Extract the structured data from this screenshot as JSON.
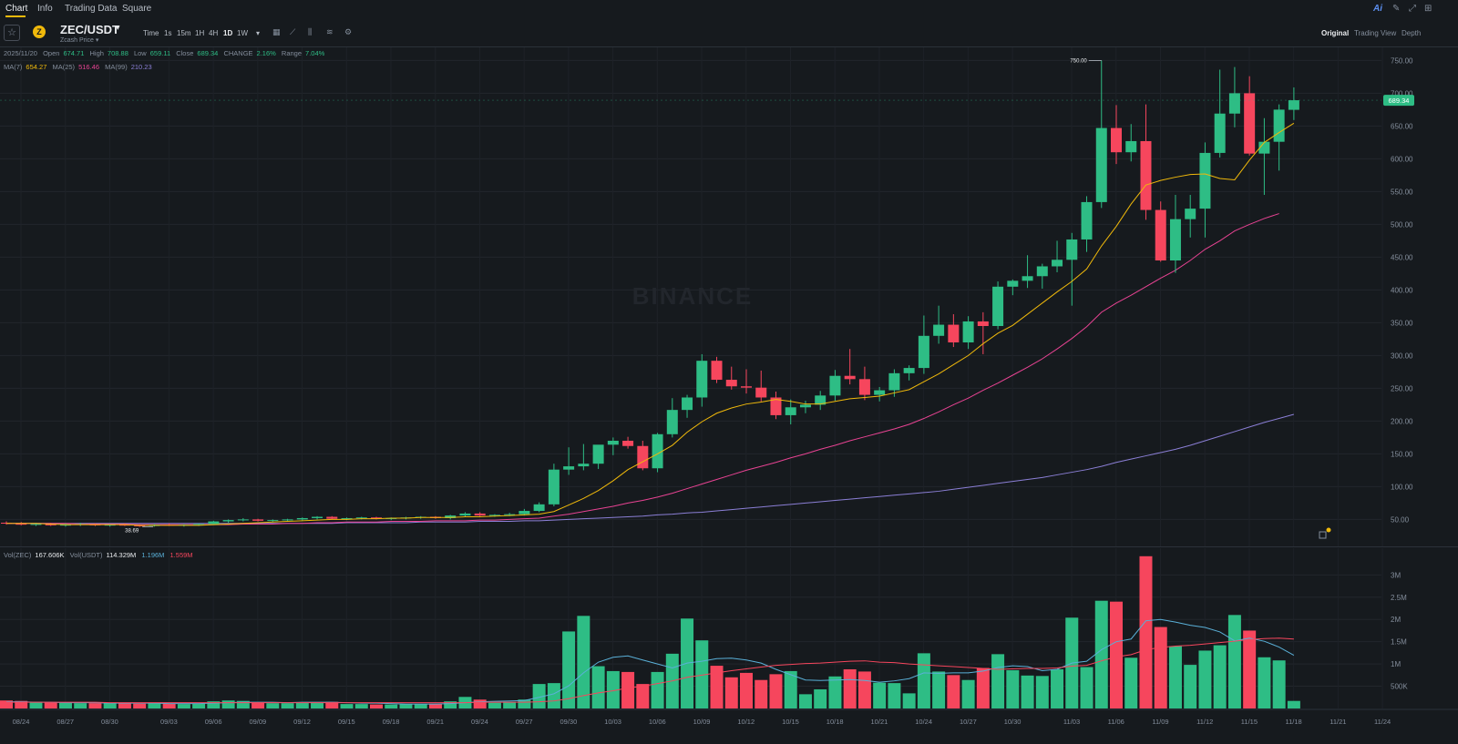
{
  "nav": {
    "tabs": [
      "Chart",
      "Info",
      "Trading Data",
      "Square"
    ],
    "right_icons": [
      "ai-icon",
      "edit-icon",
      "fullscreen-icon",
      "grid-icon"
    ],
    "ai_label": "Ai"
  },
  "toolbar": {
    "star": "☆",
    "coin_letter": "Z",
    "symbol": "ZEC/USDT",
    "caret": "▾",
    "subtitle": "Zcash Price ▾",
    "intervals": [
      "Time",
      "1s",
      "15m",
      "1H",
      "4H",
      "1D",
      "1W",
      "▾"
    ],
    "active_interval": "1D",
    "tool_icons": [
      "calendar-icon",
      "line-chart-icon",
      "candle-type-icon",
      "indicators-icon",
      "settings-icon"
    ],
    "views": [
      "Original",
      "Trading View",
      "Depth"
    ],
    "active_view": "Original"
  },
  "legend": {
    "date": "2025/11/20",
    "open_label": "Open",
    "open": "674.71",
    "high_label": "High",
    "high": "708.88",
    "low_label": "Low",
    "low": "659.11",
    "close_label": "Close",
    "close": "689.34",
    "change_label": "CHANGE",
    "change": "2.16%",
    "range_label": "Range",
    "range": "7.04%",
    "ma7_label": "MA(7)",
    "ma7": "654.27",
    "ma25_label": "MA(25)",
    "ma25": "516.46",
    "ma99_label": "MA(99)",
    "ma99": "210.23",
    "vol_zec_label": "Vol(ZEC)",
    "vol_zec": "167.606K",
    "vol_usdt_label": "Vol(USDT)",
    "vol_usdt": "114.329M",
    "vol_ma1": "1.196M",
    "vol_ma2": "1.559M"
  },
  "chart_data": {
    "type": "candlestick",
    "watermark": "BINANCE",
    "price_ticks": [
      50,
      100,
      150,
      200,
      250,
      300,
      350,
      400,
      450,
      500,
      550,
      600,
      650,
      700,
      750
    ],
    "price_range": [
      20,
      770
    ],
    "current_price": "689.34",
    "max_label": "750.00",
    "min_label": "38.69",
    "x_tick_labels": [
      "08/24",
      "08/27",
      "08/30",
      "09/03",
      "09/06",
      "09/09",
      "09/12",
      "09/15",
      "09/18",
      "09/21",
      "09/24",
      "09/27",
      "09/30",
      "10/03",
      "10/06",
      "10/09",
      "10/12",
      "10/15",
      "10/18",
      "10/21",
      "10/24",
      "10/27",
      "10/30",
      "11/03",
      "11/06",
      "11/09",
      "11/12",
      "11/15",
      "11/18",
      "11/21",
      "11/24"
    ],
    "vol_ticks": [
      "500K",
      "1M",
      "1.5M",
      "2M",
      "2.5M",
      "3M"
    ],
    "vol_tick_values": [
      0.5,
      1.0,
      1.5,
      2.0,
      2.5,
      3.0
    ],
    "vol_range_m": [
      0,
      3.6
    ],
    "colors": {
      "up": "#2ebd85",
      "down": "#f6465d",
      "ma7": "#f0b90b",
      "ma25": "#e84393",
      "ma99": "#8b7fd6",
      "vol_ma1": "#5ab0d8",
      "vol_ma2": "#f6465d"
    },
    "candles": [
      {
        "o": 45,
        "h": 47,
        "l": 42,
        "c": 44,
        "v": 0.18
      },
      {
        "o": 44,
        "h": 46,
        "l": 41,
        "c": 42,
        "v": 0.17
      },
      {
        "o": 42,
        "h": 45,
        "l": 40,
        "c": 43,
        "v": 0.15
      },
      {
        "o": 43,
        "h": 45,
        "l": 40,
        "c": 41,
        "v": 0.14
      },
      {
        "o": 41,
        "h": 44,
        "l": 39,
        "c": 42,
        "v": 0.13
      },
      {
        "o": 42,
        "h": 45,
        "l": 40,
        "c": 43,
        "v": 0.12
      },
      {
        "o": 43,
        "h": 44,
        "l": 40,
        "c": 41,
        "v": 0.12
      },
      {
        "o": 41,
        "h": 43,
        "l": 39,
        "c": 42,
        "v": 0.13
      },
      {
        "o": 42,
        "h": 44,
        "l": 40,
        "c": 41,
        "v": 0.12
      },
      {
        "o": 41,
        "h": 43,
        "l": 38.69,
        "c": 40,
        "v": 0.11
      },
      {
        "o": 40,
        "h": 43,
        "l": 39,
        "c": 42,
        "v": 0.12
      },
      {
        "o": 42,
        "h": 44,
        "l": 40,
        "c": 41,
        "v": 0.11
      },
      {
        "o": 41,
        "h": 43,
        "l": 39,
        "c": 42,
        "v": 0.1
      },
      {
        "o": 42,
        "h": 44,
        "l": 40,
        "c": 43,
        "v": 0.11
      },
      {
        "o": 43,
        "h": 48,
        "l": 42,
        "c": 47,
        "v": 0.16
      },
      {
        "o": 47,
        "h": 50,
        "l": 45,
        "c": 49,
        "v": 0.18
      },
      {
        "o": 49,
        "h": 52,
        "l": 47,
        "c": 50,
        "v": 0.17
      },
      {
        "o": 50,
        "h": 51,
        "l": 47,
        "c": 48,
        "v": 0.14
      },
      {
        "o": 48,
        "h": 50,
        "l": 46,
        "c": 49,
        "v": 0.12
      },
      {
        "o": 49,
        "h": 51,
        "l": 47,
        "c": 50,
        "v": 0.12
      },
      {
        "o": 50,
        "h": 53,
        "l": 48,
        "c": 52,
        "v": 0.14
      },
      {
        "o": 52,
        "h": 55,
        "l": 50,
        "c": 54,
        "v": 0.13
      },
      {
        "o": 54,
        "h": 55,
        "l": 50,
        "c": 51,
        "v": 0.15
      },
      {
        "o": 51,
        "h": 53,
        "l": 49,
        "c": 52,
        "v": 0.1
      },
      {
        "o": 52,
        "h": 54,
        "l": 50,
        "c": 53,
        "v": 0.1
      },
      {
        "o": 53,
        "h": 54,
        "l": 50,
        "c": 51,
        "v": 0.09
      },
      {
        "o": 51,
        "h": 53,
        "l": 49,
        "c": 52,
        "v": 0.09
      },
      {
        "o": 52,
        "h": 54,
        "l": 50,
        "c": 53,
        "v": 0.1
      },
      {
        "o": 53,
        "h": 55,
        "l": 51,
        "c": 54,
        "v": 0.1
      },
      {
        "o": 54,
        "h": 55,
        "l": 51,
        "c": 52,
        "v": 0.11
      },
      {
        "o": 52,
        "h": 57,
        "l": 50,
        "c": 56,
        "v": 0.16
      },
      {
        "o": 56,
        "h": 61,
        "l": 54,
        "c": 59,
        "v": 0.26
      },
      {
        "o": 59,
        "h": 61,
        "l": 55,
        "c": 56,
        "v": 0.2
      },
      {
        "o": 56,
        "h": 58,
        "l": 54,
        "c": 57,
        "v": 0.13
      },
      {
        "o": 57,
        "h": 60,
        "l": 55,
        "c": 58,
        "v": 0.15
      },
      {
        "o": 58,
        "h": 66,
        "l": 56,
        "c": 63,
        "v": 0.2
      },
      {
        "o": 63,
        "h": 76,
        "l": 61,
        "c": 73,
        "v": 0.55
      },
      {
        "o": 73,
        "h": 135,
        "l": 70,
        "c": 126,
        "v": 0.57
      },
      {
        "o": 126,
        "h": 160,
        "l": 118,
        "c": 131,
        "v": 1.73
      },
      {
        "o": 131,
        "h": 165,
        "l": 125,
        "c": 135,
        "v": 2.08
      },
      {
        "o": 135,
        "h": 162,
        "l": 127,
        "c": 164,
        "v": 0.95
      },
      {
        "o": 164,
        "h": 175,
        "l": 148,
        "c": 170,
        "v": 0.84
      },
      {
        "o": 170,
        "h": 176,
        "l": 158,
        "c": 162,
        "v": 0.82
      },
      {
        "o": 162,
        "h": 170,
        "l": 125,
        "c": 128,
        "v": 0.55
      },
      {
        "o": 128,
        "h": 182,
        "l": 122,
        "c": 180,
        "v": 0.82
      },
      {
        "o": 180,
        "h": 235,
        "l": 175,
        "c": 217,
        "v": 1.23
      },
      {
        "o": 217,
        "h": 240,
        "l": 205,
        "c": 236,
        "v": 2.02
      },
      {
        "o": 236,
        "h": 302,
        "l": 222,
        "c": 292,
        "v": 1.53
      },
      {
        "o": 292,
        "h": 298,
        "l": 258,
        "c": 263,
        "v": 0.96
      },
      {
        "o": 263,
        "h": 283,
        "l": 248,
        "c": 253,
        "v": 0.7
      },
      {
        "o": 253,
        "h": 279,
        "l": 242,
        "c": 251,
        "v": 0.8
      },
      {
        "o": 251,
        "h": 277,
        "l": 230,
        "c": 236,
        "v": 0.64
      },
      {
        "o": 236,
        "h": 245,
        "l": 203,
        "c": 209,
        "v": 0.77
      },
      {
        "o": 209,
        "h": 233,
        "l": 195,
        "c": 221,
        "v": 0.84
      },
      {
        "o": 221,
        "h": 231,
        "l": 212,
        "c": 225,
        "v": 0.32
      },
      {
        "o": 225,
        "h": 246,
        "l": 217,
        "c": 239,
        "v": 0.43
      },
      {
        "o": 239,
        "h": 278,
        "l": 231,
        "c": 269,
        "v": 0.72
      },
      {
        "o": 269,
        "h": 310,
        "l": 256,
        "c": 264,
        "v": 0.88
      },
      {
        "o": 264,
        "h": 283,
        "l": 232,
        "c": 240,
        "v": 0.83
      },
      {
        "o": 240,
        "h": 252,
        "l": 230,
        "c": 247,
        "v": 0.58
      },
      {
        "o": 247,
        "h": 279,
        "l": 237,
        "c": 273,
        "v": 0.57
      },
      {
        "o": 273,
        "h": 285,
        "l": 262,
        "c": 281,
        "v": 0.34
      },
      {
        "o": 281,
        "h": 361,
        "l": 272,
        "c": 330,
        "v": 1.24
      },
      {
        "o": 330,
        "h": 376,
        "l": 318,
        "c": 347,
        "v": 0.83
      },
      {
        "o": 347,
        "h": 363,
        "l": 313,
        "c": 320,
        "v": 0.75
      },
      {
        "o": 320,
        "h": 360,
        "l": 310,
        "c": 352,
        "v": 0.64
      },
      {
        "o": 352,
        "h": 366,
        "l": 302,
        "c": 345,
        "v": 0.91
      },
      {
        "o": 345,
        "h": 413,
        "l": 340,
        "c": 405,
        "v": 1.22
      },
      {
        "o": 405,
        "h": 416,
        "l": 392,
        "c": 414,
        "v": 0.86
      },
      {
        "o": 414,
        "h": 453,
        "l": 403,
        "c": 421,
        "v": 0.74
      },
      {
        "o": 421,
        "h": 440,
        "l": 402,
        "c": 436,
        "v": 0.73
      },
      {
        "o": 436,
        "h": 475,
        "l": 427,
        "c": 446,
        "v": 0.88
      },
      {
        "o": 446,
        "h": 487,
        "l": 376,
        "c": 477,
        "v": 2.04
      },
      {
        "o": 477,
        "h": 543,
        "l": 458,
        "c": 534,
        "v": 0.93
      },
      {
        "o": 534,
        "h": 750,
        "l": 525,
        "c": 647,
        "v": 2.42
      },
      {
        "o": 647,
        "h": 682,
        "l": 592,
        "c": 610,
        "v": 2.4
      },
      {
        "o": 610,
        "h": 653,
        "l": 596,
        "c": 627,
        "v": 1.14
      },
      {
        "o": 627,
        "h": 683,
        "l": 507,
        "c": 522,
        "v": 3.42
      },
      {
        "o": 522,
        "h": 535,
        "l": 443,
        "c": 445,
        "v": 1.83
      },
      {
        "o": 445,
        "h": 545,
        "l": 426,
        "c": 508,
        "v": 1.4
      },
      {
        "o": 508,
        "h": 545,
        "l": 480,
        "c": 524,
        "v": 0.98
      },
      {
        "o": 524,
        "h": 625,
        "l": 480,
        "c": 609,
        "v": 1.3
      },
      {
        "o": 609,
        "h": 736,
        "l": 602,
        "c": 669,
        "v": 1.42
      },
      {
        "o": 669,
        "h": 740,
        "l": 648,
        "c": 700,
        "v": 2.1
      },
      {
        "o": 700,
        "h": 726,
        "l": 605,
        "c": 608,
        "v": 1.75
      },
      {
        "o": 608,
        "h": 662,
        "l": 545,
        "c": 626,
        "v": 1.15
      },
      {
        "o": 626,
        "h": 683,
        "l": 582,
        "c": 675,
        "v": 1.08
      },
      {
        "o": 674.71,
        "h": 708.88,
        "l": 659.11,
        "c": 689.34,
        "v": 0.17
      }
    ],
    "ma7": [
      44,
      44,
      44,
      43,
      42,
      42,
      42,
      42,
      42,
      41,
      41,
      41,
      41,
      41,
      42,
      43,
      44,
      45,
      46,
      47,
      48,
      49,
      50,
      50,
      51,
      51,
      52,
      52,
      53,
      53,
      53,
      54,
      54,
      55,
      56,
      57,
      58,
      62,
      72,
      82,
      94,
      109,
      126,
      138,
      150,
      163,
      183,
      199,
      212,
      220,
      226,
      229,
      233,
      230,
      226,
      226,
      230,
      234,
      236,
      238,
      243,
      248,
      260,
      272,
      286,
      300,
      318,
      334,
      346,
      363,
      380,
      397,
      413,
      432,
      467,
      497,
      531,
      560,
      567,
      572,
      576,
      577,
      570,
      568,
      598,
      625,
      640,
      654.27
    ],
    "ma25": [
      44,
      44,
      44,
      44,
      44,
      43,
      43,
      43,
      43,
      42,
      42,
      42,
      42,
      42,
      42,
      42,
      43,
      43,
      43,
      44,
      44,
      45,
      45,
      46,
      46,
      46,
      47,
      47,
      47,
      48,
      48,
      48,
      49,
      49,
      50,
      51,
      52,
      55,
      58,
      62,
      66,
      70,
      75,
      79,
      84,
      90,
      97,
      104,
      111,
      118,
      125,
      131,
      137,
      144,
      150,
      157,
      163,
      170,
      176,
      182,
      188,
      195,
      204,
      214,
      225,
      235,
      247,
      258,
      270,
      282,
      295,
      310,
      326,
      344,
      366,
      380,
      392,
      405,
      418,
      430,
      445,
      462,
      475,
      490,
      500,
      509,
      516.46
    ],
    "ma99": [
      44,
      44,
      44,
      44,
      44,
      44,
      44,
      44,
      44,
      44,
      44,
      44,
      44,
      44,
      44,
      44,
      44,
      44,
      44,
      44,
      44,
      44,
      44,
      45,
      45,
      45,
      45,
      45,
      46,
      46,
      46,
      46,
      47,
      47,
      47,
      48,
      48,
      49,
      50,
      51,
      52,
      53,
      54,
      55,
      57,
      58,
      60,
      61,
      63,
      65,
      67,
      69,
      71,
      73,
      75,
      77,
      79,
      81,
      83,
      85,
      87,
      89,
      91,
      93,
      96,
      99,
      102,
      105,
      108,
      111,
      114,
      118,
      122,
      126,
      131,
      137,
      142,
      147,
      152,
      157,
      163,
      170,
      177,
      184,
      191,
      198,
      204,
      210.23
    ],
    "vol_ma1": [
      0.15,
      0.15,
      0.14,
      0.14,
      0.13,
      0.13,
      0.13,
      0.12,
      0.12,
      0.12,
      0.12,
      0.11,
      0.11,
      0.11,
      0.12,
      0.13,
      0.14,
      0.14,
      0.14,
      0.13,
      0.14,
      0.14,
      0.14,
      0.13,
      0.12,
      0.12,
      0.11,
      0.1,
      0.1,
      0.1,
      0.11,
      0.13,
      0.15,
      0.16,
      0.17,
      0.18,
      0.25,
      0.33,
      0.51,
      0.8,
      1.04,
      1.15,
      1.18,
      1.09,
      1.0,
      0.91,
      1.02,
      1.06,
      1.12,
      1.13,
      1.09,
      1.02,
      0.88,
      0.76,
      0.64,
      0.63,
      0.64,
      0.65,
      0.63,
      0.59,
      0.62,
      0.67,
      0.8,
      0.79,
      0.8,
      0.8,
      0.84,
      0.92,
      0.96,
      0.94,
      0.85,
      0.88,
      1.02,
      1.06,
      1.32,
      1.5,
      1.56,
      1.97,
      2.0,
      1.94,
      1.87,
      1.82,
      1.72,
      1.52,
      1.58,
      1.51,
      1.38,
      1.196
    ],
    "vol_ma2": [
      0.14,
      0.14,
      0.14,
      0.14,
      0.14,
      0.14,
      0.14,
      0.13,
      0.13,
      0.13,
      0.13,
      0.13,
      0.13,
      0.13,
      0.13,
      0.13,
      0.13,
      0.13,
      0.13,
      0.13,
      0.13,
      0.13,
      0.13,
      0.13,
      0.13,
      0.13,
      0.13,
      0.13,
      0.13,
      0.13,
      0.13,
      0.13,
      0.14,
      0.14,
      0.14,
      0.14,
      0.15,
      0.17,
      0.22,
      0.29,
      0.35,
      0.4,
      0.46,
      0.5,
      0.56,
      0.62,
      0.7,
      0.75,
      0.8,
      0.85,
      0.89,
      0.93,
      0.97,
      0.99,
      1.01,
      1.02,
      1.04,
      1.06,
      1.07,
      1.04,
      1.03,
      1.0,
      0.98,
      0.96,
      0.94,
      0.92,
      0.9,
      0.88,
      0.89,
      0.9,
      0.9,
      0.91,
      0.95,
      0.97,
      1.07,
      1.16,
      1.21,
      1.32,
      1.37,
      1.4,
      1.42,
      1.45,
      1.48,
      1.51,
      1.55,
      1.57,
      1.58,
      1.559
    ]
  }
}
